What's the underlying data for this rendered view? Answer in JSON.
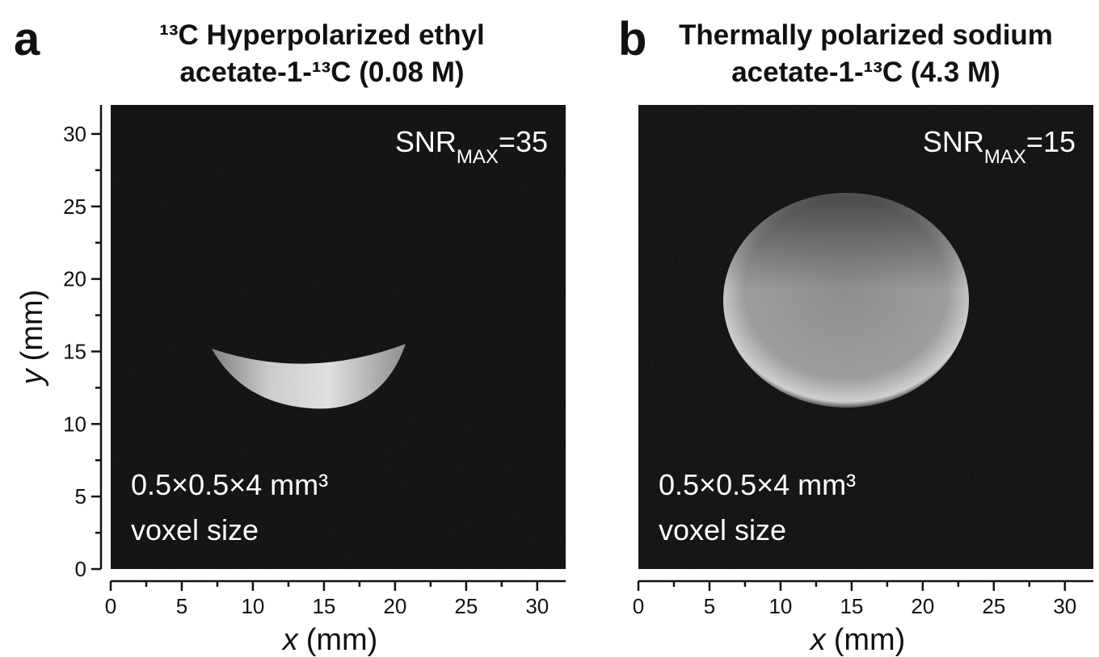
{
  "chart_data": [
    {
      "type": "image",
      "panel": "a",
      "title": [
        "¹³C Hyperpolarized ethyl",
        "acetate-1-¹³C (0.08 M)"
      ],
      "snr": {
        "label": "SNR",
        "subscript": "MAX",
        "value": "=35"
      },
      "voxel": [
        "0.5×0.5×4 mm³",
        "voxel size"
      ],
      "xlabel": {
        "variable": "x",
        "unit": "(mm)"
      },
      "ylabel": {
        "variable": "y",
        "unit": "(mm)"
      },
      "xlim": [
        0,
        32
      ],
      "ylim": [
        0,
        32
      ],
      "xticks": [
        0,
        5,
        10,
        15,
        20,
        25,
        30
      ],
      "yticks": [
        0,
        5,
        10,
        15,
        20,
        25,
        30
      ],
      "xminor": [
        2.5,
        7.5,
        12.5,
        17.5,
        22.5,
        27.5
      ],
      "yminor": [
        2.5,
        7.5,
        12.5,
        17.5,
        22.5,
        27.5
      ]
    },
    {
      "type": "image",
      "panel": "b",
      "title": [
        "Thermally polarized sodium",
        "acetate-1-¹³C (4.3 M)"
      ],
      "snr": {
        "label": "SNR",
        "subscript": "MAX",
        "value": "=15"
      },
      "voxel": [
        "0.5×0.5×4 mm³",
        "voxel size"
      ],
      "xlabel": {
        "variable": "x",
        "unit": "(mm)"
      },
      "xlim": [
        0,
        32
      ],
      "xticks": [
        0,
        5,
        10,
        15,
        20,
        25,
        30
      ],
      "xminor": [
        2.5,
        7.5,
        12.5,
        17.5,
        22.5,
        27.5
      ]
    }
  ]
}
